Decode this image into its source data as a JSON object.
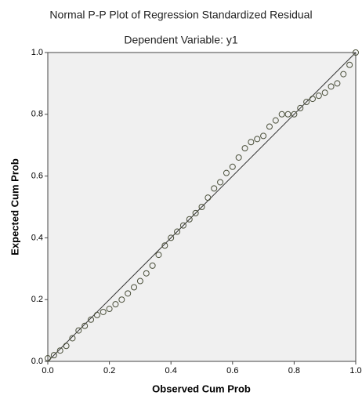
{
  "chart_data": {
    "type": "scatter",
    "title": "Normal P-P Plot of Regression Standardized Residual",
    "subtitle": "Dependent Variable: y1",
    "x_label": "Observed Cum Prob",
    "y_label": "Expected Cum Prob",
    "color": "#4a4f3a",
    "line_color": "#333333",
    "xlim": [
      0,
      1
    ],
    "ylim": [
      0,
      1
    ],
    "xticks": [
      {
        "value": 0,
        "label": "0.0"
      },
      0.2,
      0.4,
      0.6,
      0.8,
      {
        "value": 1,
        "label": "1.0"
      }
    ],
    "yticks": [
      {
        "value": 0,
        "label": "0.0"
      },
      0.2,
      0.4,
      0.6,
      0.8,
      {
        "value": 1,
        "label": "1.0"
      }
    ],
    "x": [
      0,
      0.02,
      0.04,
      0.06,
      0.08,
      0.1,
      0.12,
      0.14,
      0.16,
      0.18,
      0.2,
      0.22,
      0.24,
      0.26,
      0.28,
      0.3,
      0.32,
      0.34,
      0.36,
      0.38,
      0.4,
      0.42,
      0.44,
      0.46,
      0.48,
      0.5,
      0.52,
      0.54,
      0.56,
      0.58,
      0.6,
      0.62,
      0.64,
      0.66,
      0.68,
      0.7,
      0.72,
      0.74,
      0.76,
      0.78,
      0.8,
      0.82,
      0.84,
      0.86,
      0.88,
      0.9,
      0.92,
      0.94,
      0.96,
      0.98,
      1
    ],
    "values": [
      0.01,
      0.02,
      0.035,
      0.05,
      0.075,
      0.1,
      0.115,
      0.135,
      0.15,
      0.16,
      0.17,
      0.185,
      0.2,
      0.22,
      0.24,
      0.26,
      0.285,
      0.31,
      0.345,
      0.375,
      0.4,
      0.42,
      0.44,
      0.46,
      0.48,
      0.5,
      0.53,
      0.56,
      0.58,
      0.61,
      0.63,
      0.66,
      0.69,
      0.71,
      0.72,
      0.73,
      0.76,
      0.78,
      0.8,
      0.8,
      0.8,
      0.82,
      0.84,
      0.85,
      0.86,
      0.87,
      0.89,
      0.9,
      0.93,
      0.96,
      1
    ]
  }
}
